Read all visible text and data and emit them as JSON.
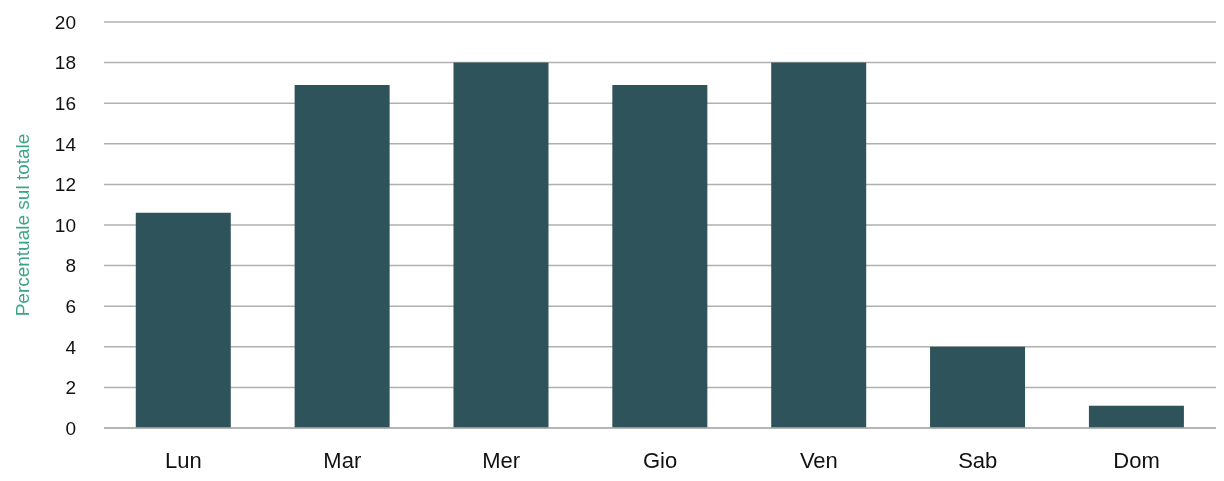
{
  "chart_data": {
    "type": "bar",
    "ylabel": "Percentuale sul totale",
    "categories": [
      "Lun",
      "Mar",
      "Mer",
      "Gio",
      "Ven",
      "Sab",
      "Dom"
    ],
    "values": [
      10.6,
      16.9,
      18,
      16.9,
      18,
      4,
      1.1
    ],
    "color": "#2e535a",
    "ylim": [
      0,
      20
    ],
    "yticks": [
      0,
      2,
      4,
      6,
      8,
      10,
      12,
      14,
      16,
      18,
      20
    ],
    "grid": "y"
  }
}
